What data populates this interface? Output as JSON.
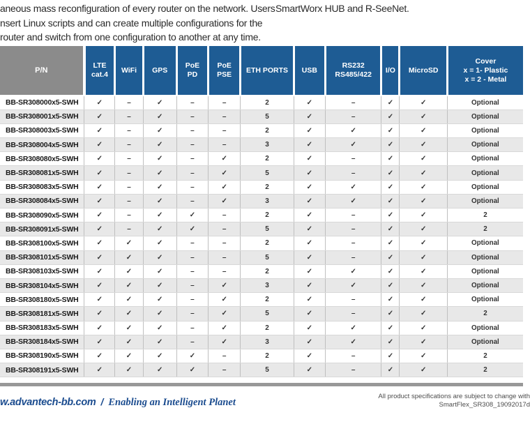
{
  "colors": {
    "header_blue": "#1E5C94",
    "header_gray": "#8B8B8B",
    "row_alt": "#E8E8E8",
    "bar_gray": "#989898",
    "footer_blue": "#1B4C8F"
  },
  "intro": {
    "left_lines": [
      "aneous mass reconfiguration of every router on the network. Users",
      "nsert Linux scripts and can create multiple configurations for the",
      "router and switch from one configuration to another at any time."
    ],
    "right_text": "SmartWorx HUB and R-SeeNet."
  },
  "table": {
    "columns": [
      {
        "key": "pn",
        "label": "P/N"
      },
      {
        "key": "lte",
        "label": "LTE\ncat.4"
      },
      {
        "key": "wifi",
        "label": "WiFi"
      },
      {
        "key": "gps",
        "label": "GPS"
      },
      {
        "key": "poe-pd",
        "label": "PoE\nPD"
      },
      {
        "key": "poe-pse",
        "label": "PoE\nPSE"
      },
      {
        "key": "eth-ports",
        "label": "ETH PORTS"
      },
      {
        "key": "usb",
        "label": "USB"
      },
      {
        "key": "rs232-rs485-422",
        "label": "RS232\nRS485/422"
      },
      {
        "key": "io",
        "label": "I/O"
      },
      {
        "key": "microsd",
        "label": "MicroSD"
      },
      {
        "key": "cover",
        "label": "Cover\nx = 1- Plastic\nx = 2 - Metal"
      }
    ],
    "check_glyph": "✓",
    "dash_glyph": "–",
    "rows": [
      {
        "pn": "BB-SR308000x5-SWH",
        "values": [
          "✓",
          "–",
          "✓",
          "–",
          "–",
          "2",
          "✓",
          "–",
          "✓",
          "✓",
          "Optional"
        ]
      },
      {
        "pn": "BB-SR308001x5-SWH",
        "values": [
          "✓",
          "–",
          "✓",
          "–",
          "–",
          "5",
          "✓",
          "–",
          "✓",
          "✓",
          "Optional"
        ]
      },
      {
        "pn": "BB-SR308003x5-SWH",
        "values": [
          "✓",
          "–",
          "✓",
          "–",
          "–",
          "2",
          "✓",
          "✓",
          "✓",
          "✓",
          "Optional"
        ]
      },
      {
        "pn": "BB-SR308004x5-SWH",
        "values": [
          "✓",
          "–",
          "✓",
          "–",
          "–",
          "3",
          "✓",
          "✓",
          "✓",
          "✓",
          "Optional"
        ]
      },
      {
        "pn": "BB-SR308080x5-SWH",
        "values": [
          "✓",
          "–",
          "✓",
          "–",
          "✓",
          "2",
          "✓",
          "–",
          "✓",
          "✓",
          "Optional"
        ]
      },
      {
        "pn": "BB-SR308081x5-SWH",
        "values": [
          "✓",
          "–",
          "✓",
          "–",
          "✓",
          "5",
          "✓",
          "–",
          "✓",
          "✓",
          "Optional"
        ]
      },
      {
        "pn": "BB-SR308083x5-SWH",
        "values": [
          "✓",
          "–",
          "✓",
          "–",
          "✓",
          "2",
          "✓",
          "✓",
          "✓",
          "✓",
          "Optional"
        ]
      },
      {
        "pn": "BB-SR308084x5-SWH",
        "values": [
          "✓",
          "–",
          "✓",
          "–",
          "✓",
          "3",
          "✓",
          "✓",
          "✓",
          "✓",
          "Optional"
        ]
      },
      {
        "pn": "BB-SR308090x5-SWH",
        "values": [
          "✓",
          "–",
          "✓",
          "✓",
          "–",
          "2",
          "✓",
          "–",
          "✓",
          "✓",
          "2"
        ]
      },
      {
        "pn": "BB-SR308091x5-SWH",
        "values": [
          "✓",
          "–",
          "✓",
          "✓",
          "–",
          "5",
          "✓",
          "–",
          "✓",
          "✓",
          "2"
        ]
      },
      {
        "pn": "BB-SR308100x5-SWH",
        "values": [
          "✓",
          "✓",
          "✓",
          "–",
          "–",
          "2",
          "✓",
          "–",
          "✓",
          "✓",
          "Optional"
        ]
      },
      {
        "pn": "BB-SR308101x5-SWH",
        "values": [
          "✓",
          "✓",
          "✓",
          "–",
          "–",
          "5",
          "✓",
          "–",
          "✓",
          "✓",
          "Optional"
        ]
      },
      {
        "pn": "BB-SR308103x5-SWH",
        "values": [
          "✓",
          "✓",
          "✓",
          "–",
          "–",
          "2",
          "✓",
          "✓",
          "✓",
          "✓",
          "Optional"
        ]
      },
      {
        "pn": "BB-SR308104x5-SWH",
        "values": [
          "✓",
          "✓",
          "✓",
          "–",
          "✓",
          "3",
          "✓",
          "✓",
          "✓",
          "✓",
          "Optional"
        ]
      },
      {
        "pn": "BB-SR308180x5-SWH",
        "values": [
          "✓",
          "✓",
          "✓",
          "–",
          "✓",
          "2",
          "✓",
          "–",
          "✓",
          "✓",
          "Optional"
        ]
      },
      {
        "pn": "BB-SR308181x5-SWH",
        "values": [
          "✓",
          "✓",
          "✓",
          "–",
          "✓",
          "5",
          "✓",
          "–",
          "✓",
          "✓",
          "2"
        ]
      },
      {
        "pn": "BB-SR308183x5-SWH",
        "values": [
          "✓",
          "✓",
          "✓",
          "–",
          "✓",
          "2",
          "✓",
          "✓",
          "✓",
          "✓",
          "Optional"
        ]
      },
      {
        "pn": "BB-SR308184x5-SWH",
        "values": [
          "✓",
          "✓",
          "✓",
          "–",
          "✓",
          "3",
          "✓",
          "✓",
          "✓",
          "✓",
          "Optional"
        ]
      },
      {
        "pn": "BB-SR308190x5-SWH",
        "values": [
          "✓",
          "✓",
          "✓",
          "✓",
          "–",
          "2",
          "✓",
          "–",
          "✓",
          "✓",
          "2"
        ]
      },
      {
        "pn": "BB-SR308191x5-SWH",
        "values": [
          "✓",
          "✓",
          "✓",
          "✓",
          "–",
          "5",
          "✓",
          "–",
          "✓",
          "✓",
          "2"
        ]
      }
    ]
  },
  "footer": {
    "brand_url": "w.advantech-bb.com",
    "separator": "/",
    "tagline": "Enabling an Intelligent Planet",
    "legal_line1": "All product specifications are subject to change with",
    "legal_line2": "SmartFlex_SR308_19092017d"
  }
}
